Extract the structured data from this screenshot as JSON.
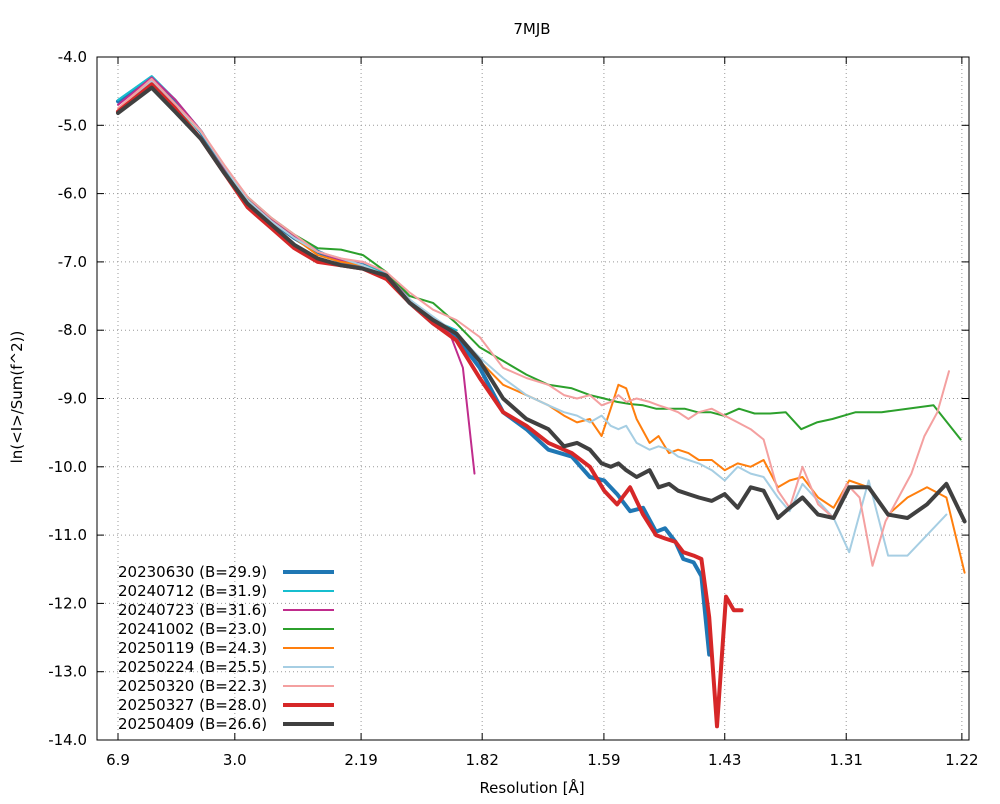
{
  "chart_data": {
    "type": "line",
    "title": "7MJB",
    "xlabel": "Resolution [Å]",
    "ylabel": "ln(<I>/Sum(f^2))",
    "xlim": [
      0.0048,
      0.6774
    ],
    "x_scale": "1/d^2",
    "x_tick_values": [
      0.021,
      0.1111,
      0.2085,
      0.3019,
      0.3958,
      0.489,
      0.5827,
      0.6719
    ],
    "x_tick_labels": [
      "6.9",
      "3.0",
      "2.19",
      "1.82",
      "1.59",
      "1.43",
      "1.31",
      "1.22"
    ],
    "ylim": [
      -14,
      -4
    ],
    "y_ticks": [
      "-4.0",
      "-5.0",
      "-6.0",
      "-7.0",
      "-8.0",
      "-9.0",
      "-10.0",
      "-11.0",
      "-12.0",
      "-13.0",
      "-14.0"
    ],
    "grid": true,
    "legend_position": "bottom-left",
    "series": [
      {
        "name": "20230630 (B=29.9)",
        "color": "#1f77b4",
        "width": 4,
        "x": [
          0.021,
          0.047,
          0.065,
          0.085,
          0.103,
          0.121,
          0.139,
          0.157,
          0.175,
          0.193,
          0.21,
          0.228,
          0.246,
          0.264,
          0.282,
          0.3,
          0.318,
          0.336,
          0.353,
          0.371,
          0.385,
          0.396,
          0.406,
          0.416,
          0.426,
          0.436,
          0.443,
          0.451,
          0.457,
          0.465,
          0.471,
          0.477
        ],
        "y": [
          -4.65,
          -4.3,
          -4.65,
          -5.1,
          -5.65,
          -6.1,
          -6.4,
          -6.65,
          -6.85,
          -7.0,
          -7.05,
          -7.2,
          -7.6,
          -7.9,
          -8.1,
          -8.55,
          -9.2,
          -9.45,
          -9.75,
          -9.85,
          -10.15,
          -10.2,
          -10.4,
          -10.65,
          -10.6,
          -10.95,
          -10.9,
          -11.1,
          -11.35,
          -11.4,
          -11.6,
          -12.75
        ]
      },
      {
        "name": "20240712 (B=31.9)",
        "color": "#17becf",
        "width": 2,
        "x": [
          0.021,
          0.047,
          0.065,
          0.085,
          0.103,
          0.121,
          0.139,
          0.157,
          0.175,
          0.193,
          0.21,
          0.228,
          0.246,
          0.264,
          0.282
        ],
        "y": [
          -4.63,
          -4.28,
          -4.62,
          -5.08,
          -5.62,
          -6.08,
          -6.38,
          -6.62,
          -6.85,
          -6.98,
          -7.05,
          -7.15,
          -7.55,
          -7.85,
          -8.0
        ]
      },
      {
        "name": "20240723 (B=31.6)",
        "color": "#c02c8c",
        "width": 2,
        "x": [
          0.021,
          0.047,
          0.065,
          0.085,
          0.103,
          0.121,
          0.139,
          0.157,
          0.175,
          0.193,
          0.21,
          0.228,
          0.246,
          0.264,
          0.277,
          0.287,
          0.296
        ],
        "y": [
          -4.7,
          -4.3,
          -4.62,
          -5.08,
          -5.62,
          -6.05,
          -6.38,
          -6.62,
          -6.85,
          -6.98,
          -7.0,
          -7.15,
          -7.55,
          -7.85,
          -8.05,
          -8.55,
          -10.1
        ]
      },
      {
        "name": "20241002 (B=23.0)",
        "color": "#2ca02c",
        "width": 2,
        "x": [
          0.021,
          0.047,
          0.065,
          0.085,
          0.103,
          0.121,
          0.139,
          0.157,
          0.175,
          0.193,
          0.21,
          0.228,
          0.246,
          0.264,
          0.282,
          0.3,
          0.318,
          0.336,
          0.353,
          0.371,
          0.385,
          0.396,
          0.406,
          0.416,
          0.426,
          0.436,
          0.448,
          0.458,
          0.468,
          0.478,
          0.488,
          0.5,
          0.512,
          0.524,
          0.536,
          0.548,
          0.56,
          0.572,
          0.59,
          0.61,
          0.63,
          0.65,
          0.671
        ],
        "y": [
          -4.8,
          -4.38,
          -4.72,
          -5.1,
          -5.6,
          -6.05,
          -6.35,
          -6.6,
          -6.8,
          -6.82,
          -6.9,
          -7.15,
          -7.5,
          -7.6,
          -7.9,
          -8.25,
          -8.45,
          -8.65,
          -8.8,
          -8.85,
          -8.95,
          -9.0,
          -9.05,
          -9.08,
          -9.1,
          -9.15,
          -9.15,
          -9.15,
          -9.2,
          -9.2,
          -9.25,
          -9.15,
          -9.22,
          -9.22,
          -9.2,
          -9.45,
          -9.35,
          -9.3,
          -9.2,
          -9.2,
          -9.15,
          -9.1,
          -9.6
        ]
      },
      {
        "name": "20250119 (B=24.3)",
        "color": "#ff7f0e",
        "width": 2,
        "x": [
          0.021,
          0.047,
          0.065,
          0.085,
          0.103,
          0.121,
          0.139,
          0.157,
          0.175,
          0.193,
          0.21,
          0.228,
          0.246,
          0.264,
          0.282,
          0.3,
          0.318,
          0.336,
          0.353,
          0.365,
          0.375,
          0.385,
          0.394,
          0.401,
          0.407,
          0.413,
          0.421,
          0.431,
          0.438,
          0.446,
          0.453,
          0.461,
          0.469,
          0.479,
          0.489,
          0.499,
          0.509,
          0.519,
          0.53,
          0.539,
          0.549,
          0.561,
          0.573,
          0.585,
          0.6,
          0.615,
          0.63,
          0.645,
          0.66,
          0.674
        ],
        "y": [
          -4.8,
          -4.35,
          -4.7,
          -5.1,
          -5.6,
          -6.1,
          -6.4,
          -6.65,
          -6.9,
          -7.0,
          -7.05,
          -7.2,
          -7.6,
          -7.85,
          -8.05,
          -8.45,
          -8.8,
          -8.95,
          -9.1,
          -9.25,
          -9.35,
          -9.3,
          -9.55,
          -9.15,
          -8.8,
          -8.85,
          -9.3,
          -9.65,
          -9.55,
          -9.8,
          -9.75,
          -9.8,
          -9.9,
          -9.9,
          -10.05,
          -9.95,
          -10.0,
          -9.9,
          -10.3,
          -10.2,
          -10.15,
          -10.45,
          -10.6,
          -10.2,
          -10.3,
          -10.7,
          -10.45,
          -10.3,
          -10.45,
          -11.55
        ]
      },
      {
        "name": "20250224 (B=25.5)",
        "color": "#a6cee3",
        "width": 2,
        "x": [
          0.021,
          0.047,
          0.065,
          0.085,
          0.103,
          0.121,
          0.139,
          0.157,
          0.175,
          0.193,
          0.21,
          0.228,
          0.246,
          0.264,
          0.282,
          0.3,
          0.318,
          0.336,
          0.353,
          0.365,
          0.375,
          0.385,
          0.394,
          0.401,
          0.407,
          0.413,
          0.421,
          0.431,
          0.438,
          0.446,
          0.453,
          0.461,
          0.469,
          0.479,
          0.489,
          0.499,
          0.509,
          0.519,
          0.53,
          0.539,
          0.549,
          0.561,
          0.573,
          0.585,
          0.6,
          0.615,
          0.63,
          0.645,
          0.66
        ],
        "y": [
          -4.8,
          -4.35,
          -4.7,
          -5.1,
          -5.6,
          -6.1,
          -6.4,
          -6.65,
          -6.85,
          -6.95,
          -7.05,
          -7.2,
          -7.55,
          -7.8,
          -8.05,
          -8.4,
          -8.7,
          -8.95,
          -9.1,
          -9.2,
          -9.25,
          -9.35,
          -9.25,
          -9.4,
          -9.45,
          -9.4,
          -9.65,
          -9.75,
          -9.7,
          -9.75,
          -9.85,
          -9.9,
          -9.95,
          -10.05,
          -10.2,
          -10.0,
          -10.1,
          -10.15,
          -10.45,
          -10.65,
          -10.25,
          -10.5,
          -10.75,
          -11.25,
          -10.2,
          -11.3,
          -11.3,
          -11.0,
          -10.7
        ]
      },
      {
        "name": "20250320 (B=22.3)",
        "color": "#f4a0a0",
        "width": 2,
        "x": [
          0.021,
          0.047,
          0.065,
          0.085,
          0.103,
          0.121,
          0.139,
          0.157,
          0.175,
          0.193,
          0.21,
          0.228,
          0.246,
          0.264,
          0.282,
          0.3,
          0.318,
          0.336,
          0.353,
          0.365,
          0.375,
          0.385,
          0.394,
          0.401,
          0.407,
          0.413,
          0.421,
          0.431,
          0.438,
          0.446,
          0.453,
          0.461,
          0.469,
          0.479,
          0.489,
          0.499,
          0.509,
          0.519,
          0.53,
          0.539,
          0.549,
          0.561,
          0.573,
          0.583,
          0.593,
          0.603,
          0.613,
          0.623,
          0.633,
          0.643,
          0.653,
          0.662
        ],
        "y": [
          -4.75,
          -4.32,
          -4.68,
          -5.08,
          -5.58,
          -6.05,
          -6.35,
          -6.6,
          -6.85,
          -6.95,
          -7.0,
          -7.15,
          -7.45,
          -7.7,
          -7.85,
          -8.1,
          -8.55,
          -8.7,
          -8.8,
          -8.95,
          -9.0,
          -8.95,
          -9.1,
          -9.05,
          -8.95,
          -9.05,
          -9.0,
          -9.05,
          -9.1,
          -9.15,
          -9.2,
          -9.3,
          -9.2,
          -9.15,
          -9.25,
          -9.35,
          -9.45,
          -9.6,
          -10.35,
          -10.6,
          -10.0,
          -10.55,
          -10.75,
          -10.25,
          -10.45,
          -11.45,
          -10.8,
          -10.45,
          -10.1,
          -9.55,
          -9.2,
          -8.6
        ]
      },
      {
        "name": "20250327 (B=28.0)",
        "color": "#d62728",
        "width": 4,
        "x": [
          0.021,
          0.047,
          0.065,
          0.085,
          0.103,
          0.121,
          0.139,
          0.157,
          0.175,
          0.193,
          0.21,
          0.228,
          0.246,
          0.264,
          0.282,
          0.3,
          0.318,
          0.336,
          0.353,
          0.371,
          0.385,
          0.396,
          0.406,
          0.416,
          0.426,
          0.436,
          0.443,
          0.451,
          0.457,
          0.465,
          0.471,
          0.477,
          0.483,
          0.49,
          0.496,
          0.502
        ],
        "y": [
          -4.8,
          -4.4,
          -4.75,
          -5.2,
          -5.7,
          -6.2,
          -6.5,
          -6.8,
          -7.0,
          -7.05,
          -7.1,
          -7.25,
          -7.6,
          -7.9,
          -8.15,
          -8.7,
          -9.2,
          -9.4,
          -9.65,
          -9.8,
          -10.0,
          -10.35,
          -10.55,
          -10.3,
          -10.7,
          -11.0,
          -11.05,
          -11.1,
          -11.25,
          -11.3,
          -11.35,
          -12.2,
          -13.8,
          -11.9,
          -12.1,
          -12.1
        ]
      },
      {
        "name": "20250409 (B=26.6)",
        "color": "#404040",
        "width": 4,
        "x": [
          0.021,
          0.047,
          0.065,
          0.085,
          0.103,
          0.121,
          0.139,
          0.157,
          0.175,
          0.193,
          0.21,
          0.228,
          0.246,
          0.264,
          0.282,
          0.3,
          0.318,
          0.336,
          0.353,
          0.365,
          0.375,
          0.385,
          0.394,
          0.401,
          0.407,
          0.413,
          0.421,
          0.431,
          0.438,
          0.446,
          0.453,
          0.461,
          0.469,
          0.479,
          0.489,
          0.499,
          0.509,
          0.519,
          0.53,
          0.539,
          0.549,
          0.561,
          0.573,
          0.585,
          0.6,
          0.615,
          0.63,
          0.645,
          0.66,
          0.674
        ],
        "y": [
          -4.82,
          -4.45,
          -4.8,
          -5.2,
          -5.7,
          -6.15,
          -6.45,
          -6.75,
          -6.95,
          -7.05,
          -7.1,
          -7.2,
          -7.6,
          -7.85,
          -8.05,
          -8.45,
          -9.0,
          -9.3,
          -9.45,
          -9.7,
          -9.65,
          -9.75,
          -9.95,
          -10.0,
          -9.95,
          -10.05,
          -10.15,
          -10.05,
          -10.3,
          -10.25,
          -10.35,
          -10.4,
          -10.45,
          -10.5,
          -10.4,
          -10.6,
          -10.3,
          -10.35,
          -10.75,
          -10.6,
          -10.45,
          -10.7,
          -10.75,
          -10.3,
          -10.3,
          -10.7,
          -10.75,
          -10.55,
          -10.25,
          -10.8
        ]
      }
    ]
  }
}
